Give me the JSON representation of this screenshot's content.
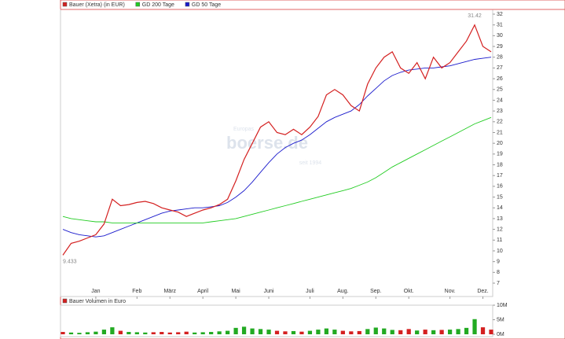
{
  "chart_data": [
    {
      "type": "line",
      "categories": [
        null,
        null,
        null,
        null,
        "Jan",
        null,
        null,
        null,
        null,
        "Feb",
        null,
        null,
        null,
        "März",
        null,
        null,
        null,
        "April",
        null,
        null,
        null,
        "Mai",
        null,
        null,
        null,
        "Juni",
        null,
        null,
        null,
        null,
        "Juli",
        null,
        null,
        null,
        "Aug.",
        null,
        null,
        null,
        "Sep.",
        null,
        null,
        null,
        "Okt.",
        null,
        null,
        null,
        null,
        "Nov.",
        null,
        null,
        null,
        "Dez.",
        null
      ],
      "series": [
        {
          "name": "Bauer (Xetra) (in EUR)",
          "color": "#d42020",
          "values": [
            9.6,
            10.7,
            10.9,
            11.2,
            11.5,
            12.5,
            14.8,
            14.2,
            14.3,
            14.5,
            14.6,
            14.4,
            14.0,
            13.8,
            13.6,
            13.2,
            13.5,
            13.8,
            14.0,
            14.3,
            14.8,
            16.5,
            18.5,
            20.0,
            21.5,
            22.0,
            21.0,
            20.8,
            21.3,
            20.8,
            21.5,
            22.5,
            24.5,
            25.0,
            24.5,
            23.5,
            23.0,
            25.5,
            27.0,
            28.0,
            28.5,
            27.0,
            26.5,
            27.5,
            26.0,
            28.0,
            27.0,
            27.5,
            28.5,
            29.5,
            31.0,
            29.0,
            28.5
          ]
        },
        {
          "name": "GD 200 Tage",
          "color": "#22cc22",
          "values": [
            13.2,
            13.0,
            12.9,
            12.8,
            12.7,
            12.7,
            12.6,
            12.6,
            12.6,
            12.6,
            12.6,
            12.6,
            12.6,
            12.6,
            12.6,
            12.6,
            12.6,
            12.6,
            12.7,
            12.8,
            12.9,
            13.0,
            13.2,
            13.4,
            13.6,
            13.8,
            14.0,
            14.2,
            14.4,
            14.6,
            14.8,
            15.0,
            15.2,
            15.4,
            15.6,
            15.8,
            16.1,
            16.4,
            16.8,
            17.3,
            17.8,
            18.2,
            18.6,
            19.0,
            19.4,
            19.8,
            20.2,
            20.6,
            21.0,
            21.4,
            21.8,
            22.1,
            22.4
          ]
        },
        {
          "name": "GD 50 Tage",
          "color": "#1a1acc",
          "values": [
            12.0,
            11.7,
            11.5,
            11.4,
            11.3,
            11.4,
            11.7,
            12.0,
            12.3,
            12.6,
            12.9,
            13.2,
            13.5,
            13.7,
            13.8,
            13.9,
            14.0,
            14.0,
            14.1,
            14.2,
            14.5,
            15.0,
            15.6,
            16.4,
            17.3,
            18.2,
            19.0,
            19.6,
            20.0,
            20.3,
            20.8,
            21.4,
            22.0,
            22.4,
            22.7,
            23.0,
            23.6,
            24.4,
            25.1,
            25.8,
            26.3,
            26.6,
            26.8,
            26.9,
            27.0,
            27.0,
            27.1,
            27.2,
            27.4,
            27.6,
            27.8,
            27.9,
            28.0
          ]
        }
      ],
      "ylim": [
        7,
        32
      ],
      "yticks": [
        7,
        8,
        9,
        10,
        11,
        12,
        13,
        14,
        15,
        16,
        17,
        18,
        19,
        20,
        21,
        22,
        23,
        24,
        25,
        26,
        27,
        28,
        29,
        30,
        31,
        32
      ],
      "high_label": 31.42,
      "low_label": 9.433,
      "watermark": "boerse.de",
      "watermark_top": "Europas",
      "watermark_bottom": "seit 1994"
    },
    {
      "type": "bar",
      "title": "Bauer Volumen in Euro",
      "color": "#d42020",
      "color_up": "#22aa22",
      "values": [
        0.8,
        0.6,
        0.5,
        0.7,
        0.9,
        1.6,
        2.4,
        1.2,
        0.8,
        0.7,
        0.6,
        0.7,
        0.8,
        0.6,
        0.7,
        0.9,
        0.6,
        0.7,
        0.8,
        1.0,
        1.2,
        2.2,
        2.6,
        2.0,
        1.8,
        1.6,
        1.2,
        1.0,
        1.1,
        0.9,
        1.2,
        1.6,
        2.0,
        1.6,
        1.2,
        1.0,
        1.1,
        1.8,
        2.3,
        2.0,
        1.5,
        1.4,
        1.8,
        1.3,
        1.6,
        1.4,
        1.5,
        1.6,
        1.8,
        2.2,
        5.2,
        2.4,
        1.6
      ],
      "ylim": [
        0,
        10
      ],
      "yticks": [
        {
          "value": 0,
          "label": "0M"
        },
        {
          "value": 5,
          "label": "5M"
        },
        {
          "value": 10,
          "label": "10M"
        }
      ]
    }
  ]
}
